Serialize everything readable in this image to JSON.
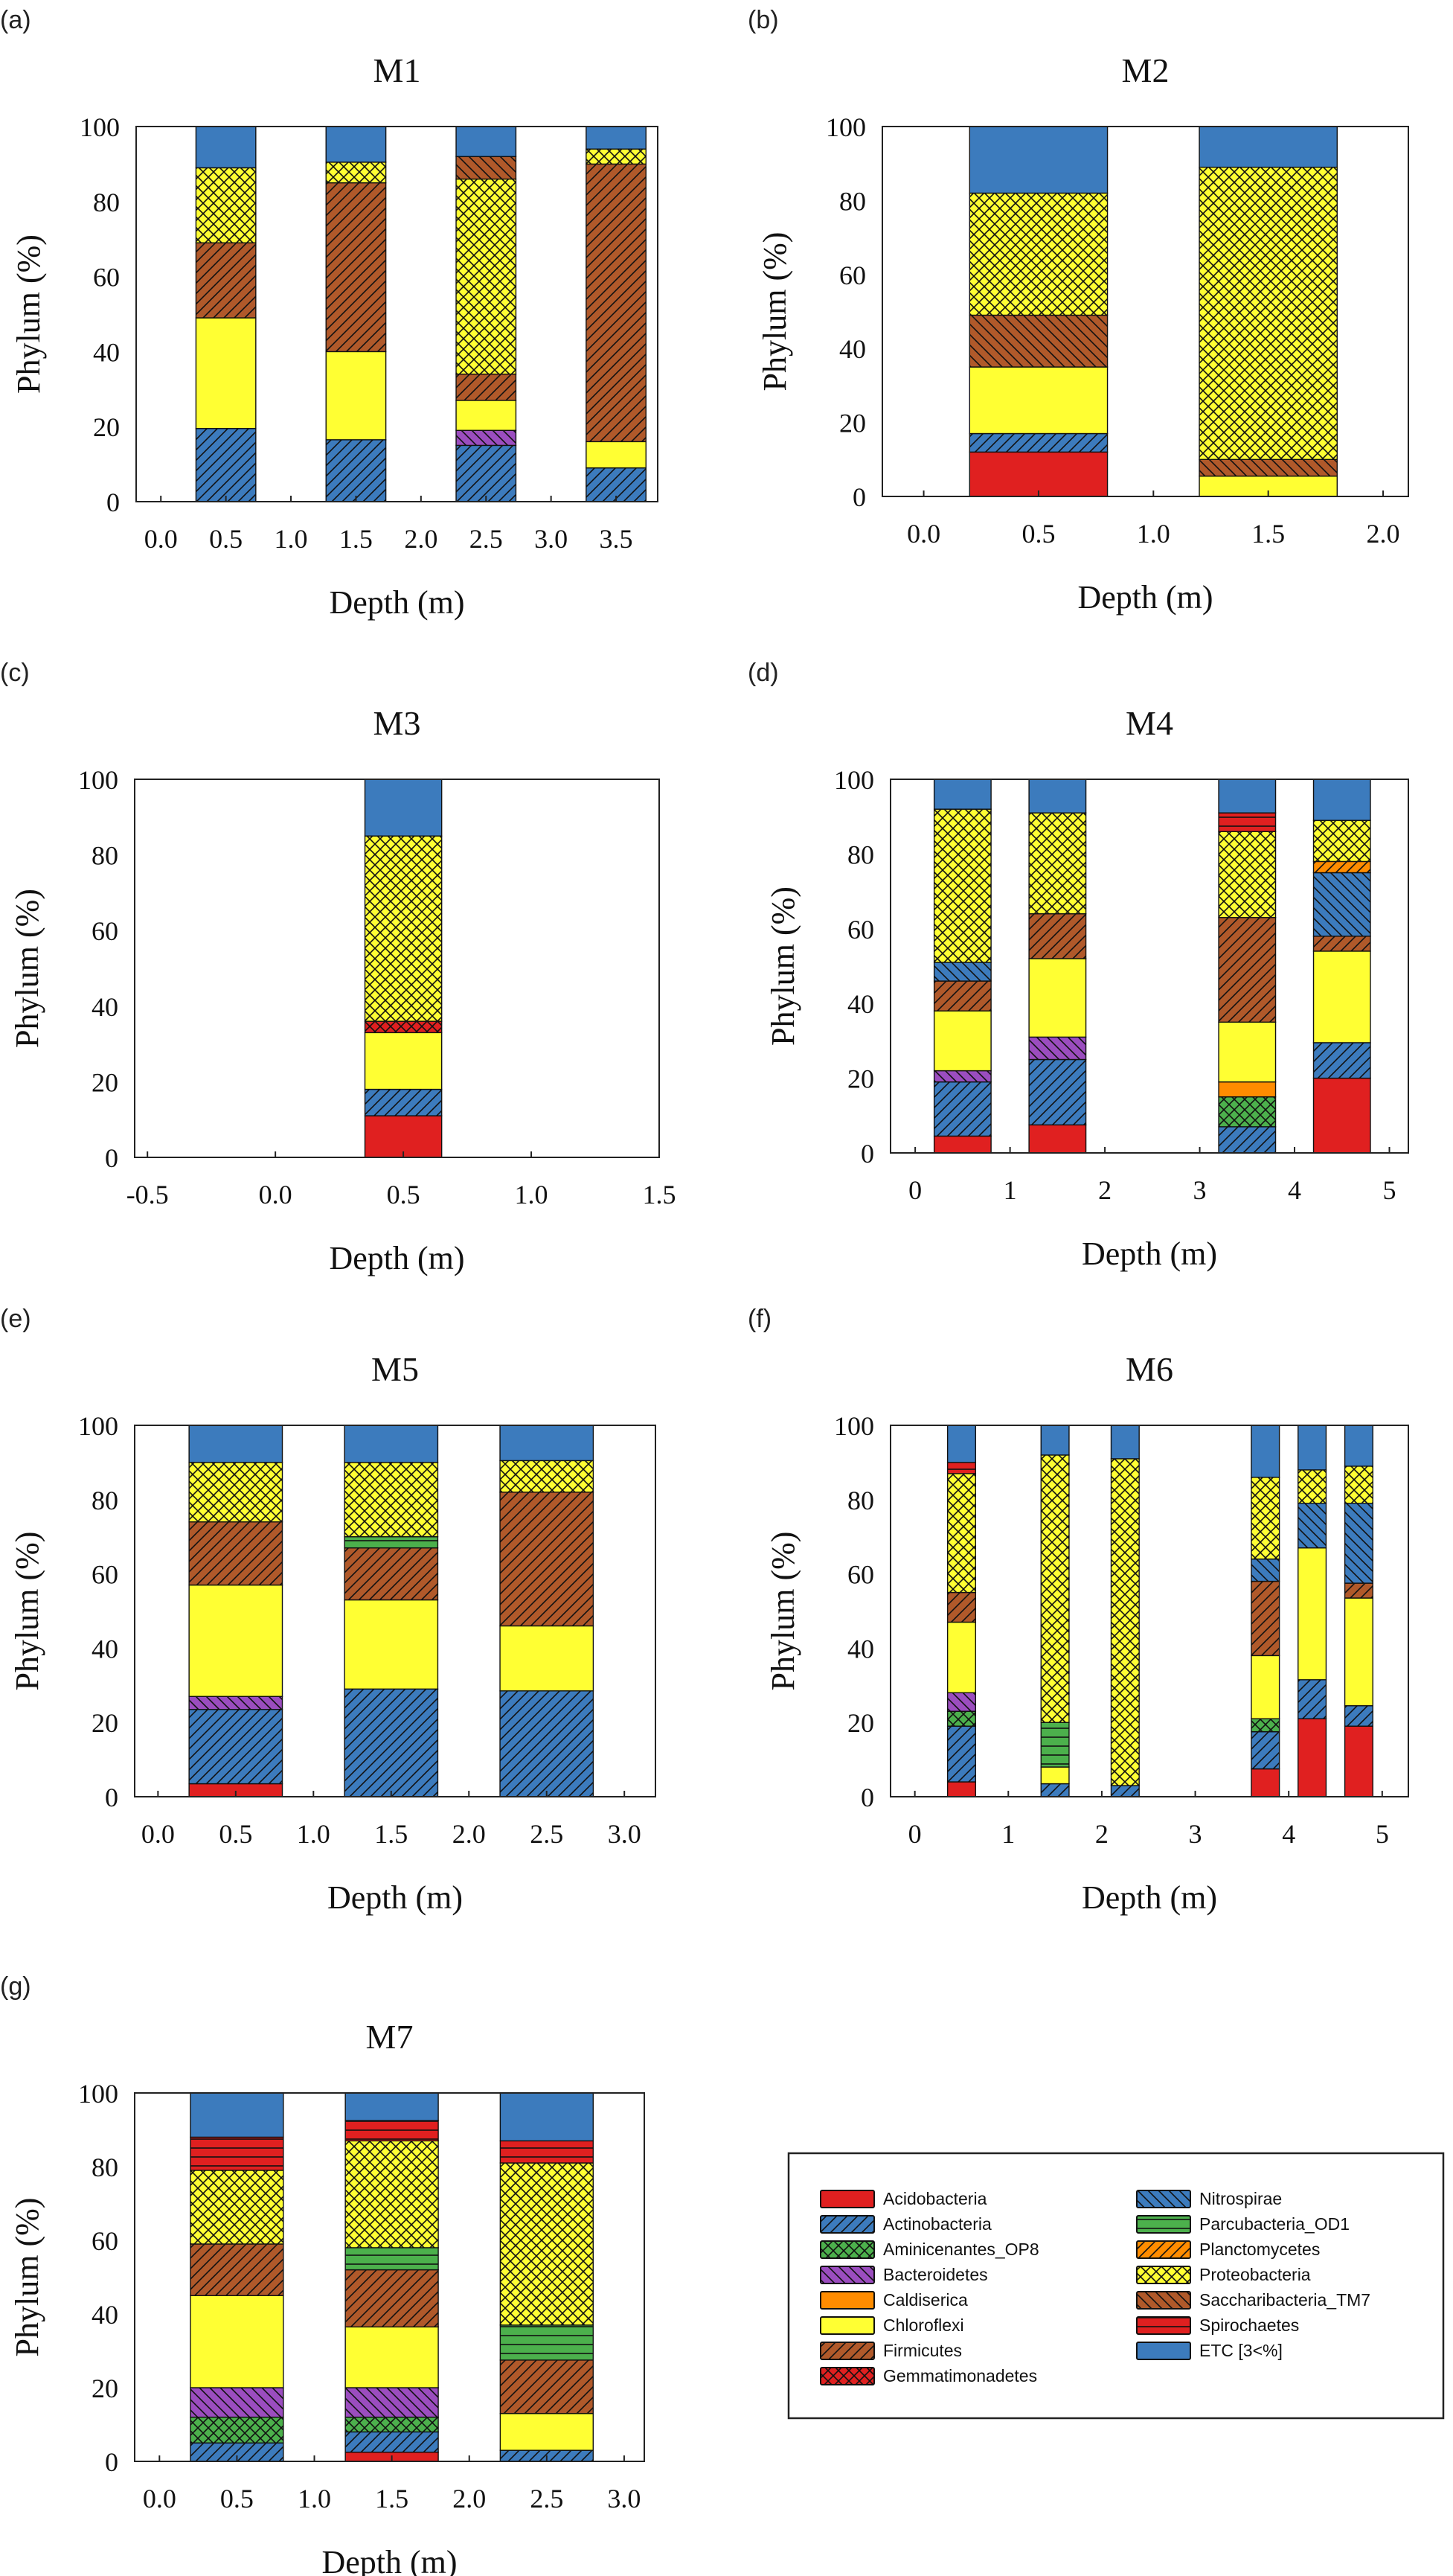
{
  "figure": {
    "panel_labels": [
      "(a)",
      "(b)",
      "(c)",
      "(d)",
      "(e)",
      "(f)",
      "(g)"
    ]
  },
  "legend": {
    "items": [
      {
        "name": "Acidobacteria",
        "color": "#e02020",
        "pattern": "solid"
      },
      {
        "name": "Actinobacteria",
        "color": "#3c7bbd",
        "pattern": "fwd"
      },
      {
        "name": "Aminicenantes_OP8",
        "color": "#4cb04c",
        "pattern": "cross"
      },
      {
        "name": "Bacteroidetes",
        "color": "#9b4dbf",
        "pattern": "back"
      },
      {
        "name": "Caldiserica",
        "color": "#ff8c00",
        "pattern": "hline"
      },
      {
        "name": "Chloroflexi",
        "color": "#ffff33",
        "pattern": "solid"
      },
      {
        "name": "Firmicutes",
        "color": "#b0592a",
        "pattern": "fwd"
      },
      {
        "name": "Gemmatimonadetes",
        "color": "#e02020",
        "pattern": "cross"
      },
      {
        "name": "Nitrospirae",
        "color": "#3c7bbd",
        "pattern": "back"
      },
      {
        "name": "Parcubacteria_OD1",
        "color": "#4cb04c",
        "pattern": "hlines"
      },
      {
        "name": "Planctomycetes",
        "color": "#ff8c00",
        "pattern": "fwd"
      },
      {
        "name": "Proteobacteria",
        "color": "#ffff33",
        "pattern": "cross"
      },
      {
        "name": "Saccharibacteria_TM7",
        "color": "#b0592a",
        "pattern": "back"
      },
      {
        "name": "Spirochaetes",
        "color": "#e02020",
        "pattern": "hlines"
      },
      {
        "name": "ETC [3<%]",
        "color": "#3c7bbd",
        "pattern": "solid"
      }
    ]
  },
  "chart_data": [
    {
      "type": "bar",
      "stacked": true,
      "title": "M1",
      "panel": "(a)",
      "xlabel": "Depth (m)",
      "ylabel": "Phylum (%)",
      "ylim": [
        0,
        100
      ],
      "yticks": [
        "0",
        "20",
        "40",
        "60",
        "80",
        "100"
      ],
      "xlim": [
        -0.19,
        3.82
      ],
      "xticks": [
        "0.0",
        "0.5",
        "1.0",
        "1.5",
        "2.0",
        "2.5",
        "3.0",
        "3.5"
      ],
      "xtick_values": [
        0,
        0.5,
        1.0,
        1.5,
        2.0,
        2.5,
        3.0,
        3.5
      ],
      "bar_width": 0.46,
      "bars": [
        {
          "depth": 0.5,
          "segments": [
            [
              "Actinobacteria",
              19.5
            ],
            [
              "Chloroflexi",
              29.5
            ],
            [
              "Firmicutes",
              20
            ],
            [
              "Proteobacteria",
              20
            ],
            [
              "ETC [3<%]",
              11
            ]
          ]
        },
        {
          "depth": 1.5,
          "segments": [
            [
              "Actinobacteria",
              16.5
            ],
            [
              "Chloroflexi",
              23.5
            ],
            [
              "Firmicutes",
              45
            ],
            [
              "Proteobacteria",
              5.5
            ],
            [
              "ETC [3<%]",
              9.5
            ]
          ]
        },
        {
          "depth": 2.5,
          "segments": [
            [
              "Actinobacteria",
              15
            ],
            [
              "Bacteroidetes",
              4
            ],
            [
              "Chloroflexi",
              8
            ],
            [
              "Firmicutes",
              7
            ],
            [
              "Proteobacteria",
              52
            ],
            [
              "Saccharibacteria_TM7",
              6
            ],
            [
              "ETC [3<%]",
              8
            ]
          ]
        },
        {
          "depth": 3.5,
          "segments": [
            [
              "Actinobacteria",
              9
            ],
            [
              "Chloroflexi",
              7
            ],
            [
              "Firmicutes",
              74
            ],
            [
              "Proteobacteria",
              4
            ],
            [
              "ETC [3<%]",
              6
            ]
          ]
        }
      ]
    },
    {
      "type": "bar",
      "stacked": true,
      "title": "M2",
      "panel": "(b)",
      "xlabel": "Depth (m)",
      "ylabel": "Phylum (%)",
      "ylim": [
        0,
        100
      ],
      "yticks": [
        "0",
        "20",
        "40",
        "60",
        "80",
        "100"
      ],
      "xlim": [
        -0.18,
        2.11
      ],
      "xticks": [
        "0.0",
        "0.5",
        "1.0",
        "1.5",
        "2.0"
      ],
      "xtick_values": [
        0,
        0.5,
        1.0,
        1.5,
        2.0
      ],
      "bar_width": 0.6,
      "bars": [
        {
          "depth": 0.5,
          "segments": [
            [
              "Acidobacteria",
              12
            ],
            [
              "Actinobacteria",
              5
            ],
            [
              "Chloroflexi",
              18
            ],
            [
              "Saccharibacteria_TM7",
              14
            ],
            [
              "Proteobacteria",
              33
            ],
            [
              "ETC [3<%]",
              18
            ]
          ]
        },
        {
          "depth": 1.5,
          "segments": [
            [
              "Chloroflexi",
              5.5
            ],
            [
              "Saccharibacteria_TM7",
              4.5
            ],
            [
              "Proteobacteria",
              79
            ],
            [
              "ETC [3<%]",
              11
            ]
          ]
        }
      ]
    },
    {
      "type": "bar",
      "stacked": true,
      "title": "M3",
      "panel": "(c)",
      "xlabel": "Depth (m)",
      "ylabel": "Phylum (%)",
      "ylim": [
        0,
        100
      ],
      "yticks": [
        "0",
        "20",
        "40",
        "60",
        "80",
        "100"
      ],
      "xlim": [
        -0.55,
        1.5
      ],
      "xticks": [
        "-0.5",
        "0.0",
        "0.5",
        "1.0",
        "1.5"
      ],
      "xtick_values": [
        -0.5,
        0,
        0.5,
        1.0,
        1.5
      ],
      "bar_width": 0.3,
      "bars": [
        {
          "depth": 0.5,
          "segments": [
            [
              "Acidobacteria",
              11
            ],
            [
              "Actinobacteria",
              7
            ],
            [
              "Chloroflexi",
              15
            ],
            [
              "Gemmatimonadetes",
              3
            ],
            [
              "Proteobacteria",
              49
            ],
            [
              "ETC [3<%]",
              15
            ]
          ]
        }
      ]
    },
    {
      "type": "bar",
      "stacked": true,
      "title": "M4",
      "panel": "(d)",
      "xlabel": "Depth (m)",
      "ylabel": "Phylum (%)",
      "ylim": [
        0,
        100
      ],
      "yticks": [
        "0",
        "20",
        "40",
        "60",
        "80",
        "100"
      ],
      "xlim": [
        -0.26,
        5.2
      ],
      "xticks": [
        "0",
        "1",
        "2",
        "3",
        "4",
        "5"
      ],
      "xtick_values": [
        0,
        1,
        2,
        3,
        4,
        5
      ],
      "bar_width": 0.6,
      "bars": [
        {
          "depth": 0.5,
          "segments": [
            [
              "Acidobacteria",
              4.5
            ],
            [
              "Actinobacteria",
              14.5
            ],
            [
              "Bacteroidetes",
              3
            ],
            [
              "Chloroflexi",
              16
            ],
            [
              "Firmicutes",
              8
            ],
            [
              "Nitrospirae",
              5
            ],
            [
              "Proteobacteria",
              41
            ],
            [
              "ETC [3<%]",
              8
            ]
          ]
        },
        {
          "depth": 1.5,
          "segments": [
            [
              "Acidobacteria",
              7.5
            ],
            [
              "Actinobacteria",
              17.5
            ],
            [
              "Bacteroidetes",
              6
            ],
            [
              "Chloroflexi",
              21
            ],
            [
              "Firmicutes",
              12
            ],
            [
              "Proteobacteria",
              27
            ],
            [
              "ETC [3<%]",
              9
            ]
          ]
        },
        {
          "depth": 3.5,
          "segments": [
            [
              "Actinobacteria",
              7
            ],
            [
              "Aminicenantes_OP8",
              8
            ],
            [
              "Caldiserica",
              4
            ],
            [
              "Chloroflexi",
              16
            ],
            [
              "Firmicutes",
              28
            ],
            [
              "Proteobacteria",
              23
            ],
            [
              "Spirochaetes",
              5
            ],
            [
              "ETC [3<%]",
              9
            ]
          ]
        },
        {
          "depth": 4.5,
          "segments": [
            [
              "Acidobacteria",
              20
            ],
            [
              "Actinobacteria",
              9.5
            ],
            [
              "Chloroflexi",
              24.5
            ],
            [
              "Firmicutes",
              4
            ],
            [
              "Nitrospirae",
              17
            ],
            [
              "Planctomycetes",
              3
            ],
            [
              "Proteobacteria",
              11
            ],
            [
              "ETC [3<%]",
              11
            ]
          ]
        }
      ]
    },
    {
      "type": "bar",
      "stacked": true,
      "title": "M5",
      "panel": "(e)",
      "xlabel": "Depth (m)",
      "ylabel": "Phylum (%)",
      "ylim": [
        0,
        100
      ],
      "yticks": [
        "0",
        "20",
        "40",
        "60",
        "80",
        "100"
      ],
      "xlim": [
        -0.15,
        3.2
      ],
      "xticks": [
        "0.0",
        "0.5",
        "1.0",
        "1.5",
        "2.0",
        "2.5",
        "3.0"
      ],
      "xtick_values": [
        0,
        0.5,
        1.0,
        1.5,
        2.0,
        2.5,
        3.0
      ],
      "bar_width": 0.6,
      "bars": [
        {
          "depth": 0.5,
          "segments": [
            [
              "Acidobacteria",
              3.5
            ],
            [
              "Actinobacteria",
              20
            ],
            [
              "Bacteroidetes",
              3.5
            ],
            [
              "Chloroflexi",
              30
            ],
            [
              "Firmicutes",
              17
            ],
            [
              "Proteobacteria",
              16
            ],
            [
              "ETC [3<%]",
              10
            ]
          ]
        },
        {
          "depth": 1.5,
          "segments": [
            [
              "Actinobacteria",
              29
            ],
            [
              "Chloroflexi",
              24
            ],
            [
              "Firmicutes",
              14
            ],
            [
              "Parcubacteria_OD1",
              3
            ],
            [
              "Proteobacteria",
              20
            ],
            [
              "ETC [3<%]",
              10
            ]
          ]
        },
        {
          "depth": 2.5,
          "segments": [
            [
              "Actinobacteria",
              28.5
            ],
            [
              "Chloroflexi",
              17.5
            ],
            [
              "Firmicutes",
              36
            ],
            [
              "Proteobacteria",
              8.5
            ],
            [
              "ETC [3<%]",
              9.5
            ]
          ]
        }
      ]
    },
    {
      "type": "bar",
      "stacked": true,
      "title": "M6",
      "panel": "(f)",
      "xlabel": "Depth (m)",
      "ylabel": "Phylum (%)",
      "ylim": [
        0,
        100
      ],
      "yticks": [
        "0",
        "20",
        "40",
        "60",
        "80",
        "100"
      ],
      "xlim": [
        -0.26,
        5.28
      ],
      "xticks": [
        "0",
        "1",
        "2",
        "3",
        "4",
        "5"
      ],
      "xtick_values": [
        0,
        1,
        2,
        3,
        4,
        5
      ],
      "bar_width": 0.3,
      "bars": [
        {
          "depth": 0.5,
          "segments": [
            [
              "Acidobacteria",
              4
            ],
            [
              "Actinobacteria",
              15
            ],
            [
              "Aminicenantes_OP8",
              4
            ],
            [
              "Bacteroidetes",
              5
            ],
            [
              "Chloroflexi",
              19
            ],
            [
              "Firmicutes",
              8
            ],
            [
              "Proteobacteria",
              32
            ],
            [
              "Spirochaetes",
              3
            ],
            [
              "ETC [3<%]",
              10
            ]
          ]
        },
        {
          "depth": 1.5,
          "segments": [
            [
              "Actinobacteria",
              3.5
            ],
            [
              "Chloroflexi",
              4.5
            ],
            [
              "Parcubacteria_OD1",
              12
            ],
            [
              "Proteobacteria",
              72
            ],
            [
              "ETC [3<%]",
              8
            ]
          ]
        },
        {
          "depth": 2.25,
          "segments": [
            [
              "Actinobacteria",
              3
            ],
            [
              "Proteobacteria",
              88
            ],
            [
              "ETC [3<%]",
              9
            ]
          ]
        },
        {
          "depth": 3.75,
          "segments": [
            [
              "Acidobacteria",
              7.5
            ],
            [
              "Actinobacteria",
              10
            ],
            [
              "Aminicenantes_OP8",
              3.5
            ],
            [
              "Chloroflexi",
              17
            ],
            [
              "Firmicutes",
              20
            ],
            [
              "Nitrospirae",
              6
            ],
            [
              "Proteobacteria",
              22
            ],
            [
              "ETC [3<%]",
              14
            ]
          ]
        },
        {
          "depth": 4.25,
          "segments": [
            [
              "Acidobacteria",
              21
            ],
            [
              "Actinobacteria",
              10.5
            ],
            [
              "Chloroflexi",
              35.5
            ],
            [
              "Nitrospirae",
              12
            ],
            [
              "Proteobacteria",
              9
            ],
            [
              "ETC [3<%]",
              12
            ]
          ]
        },
        {
          "depth": 4.75,
          "segments": [
            [
              "Acidobacteria",
              19
            ],
            [
              "Actinobacteria",
              5.5
            ],
            [
              "Chloroflexi",
              29
            ],
            [
              "Firmicutes",
              4
            ],
            [
              "Nitrospirae",
              21.5
            ],
            [
              "Proteobacteria",
              10
            ],
            [
              "ETC [3<%]",
              11
            ]
          ]
        }
      ]
    },
    {
      "type": "bar",
      "stacked": true,
      "title": "M7",
      "panel": "(g)",
      "xlabel": "Depth (m)",
      "ylabel": "Phylum (%)",
      "ylim": [
        0,
        100
      ],
      "yticks": [
        "0",
        "20",
        "40",
        "60",
        "80",
        "100"
      ],
      "xlim": [
        -0.16,
        3.13
      ],
      "xticks": [
        "0.0",
        "0.5",
        "1.0",
        "1.5",
        "2.0",
        "2.5",
        "3.0"
      ],
      "xtick_values": [
        0,
        0.5,
        1.0,
        1.5,
        2.0,
        2.5,
        3.0
      ],
      "bar_width": 0.6,
      "bars": [
        {
          "depth": 0.5,
          "segments": [
            [
              "Actinobacteria",
              5
            ],
            [
              "Aminicenantes_OP8",
              7
            ],
            [
              "Bacteroidetes",
              8
            ],
            [
              "Chloroflexi",
              25
            ],
            [
              "Firmicutes",
              14
            ],
            [
              "Proteobacteria",
              20
            ],
            [
              "Spirochaetes",
              9
            ],
            [
              "ETC [3<%]",
              12
            ]
          ]
        },
        {
          "depth": 1.5,
          "segments": [
            [
              "Acidobacteria",
              2.5
            ],
            [
              "Actinobacteria",
              5.5
            ],
            [
              "Aminicenantes_OP8",
              4
            ],
            [
              "Bacteroidetes",
              8
            ],
            [
              "Chloroflexi",
              16.5
            ],
            [
              "Firmicutes",
              15.5
            ],
            [
              "Parcubacteria_OD1",
              6
            ],
            [
              "Proteobacteria",
              29
            ],
            [
              "Spirochaetes",
              5.5
            ],
            [
              "ETC [3<%]",
              7.5
            ]
          ]
        },
        {
          "depth": 2.5,
          "segments": [
            [
              "Actinobacteria",
              3
            ],
            [
              "Chloroflexi",
              10
            ],
            [
              "Firmicutes",
              14.5
            ],
            [
              "Parcubacteria_OD1",
              9.5
            ],
            [
              "Proteobacteria",
              44
            ],
            [
              "Spirochaetes",
              6
            ],
            [
              "ETC [3<%]",
              13
            ]
          ]
        }
      ]
    }
  ]
}
